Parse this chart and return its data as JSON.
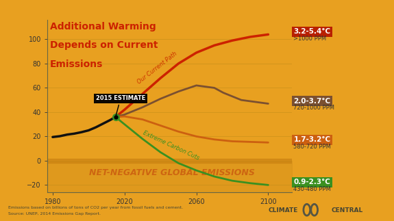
{
  "bg_color": "#E8A020",
  "title_line1": "Additional Warming",
  "title_line2": "Depends on Current",
  "title_line3": "Emissions",
  "title_color": "#CC2200",
  "xlim": [
    1977,
    2113
  ],
  "ylim": [
    -26,
    116
  ],
  "xticks": [
    1980,
    2020,
    2060,
    2100
  ],
  "yticks": [
    -20,
    0,
    20,
    40,
    60,
    80,
    100
  ],
  "historical_x": [
    1980,
    1984,
    1988,
    1992,
    1996,
    2000,
    2004,
    2008,
    2012,
    2015
  ],
  "historical_y": [
    19.5,
    20.2,
    21.5,
    22.3,
    23.5,
    25.0,
    27.5,
    30.5,
    33.5,
    36.0
  ],
  "current_path_x": [
    2015,
    2020,
    2030,
    2040,
    2050,
    2060,
    2070,
    2080,
    2090,
    2100
  ],
  "current_path_y": [
    36.0,
    42.0,
    55.0,
    68.0,
    80.0,
    89.0,
    95.0,
    99.0,
    102.0,
    104.0
  ],
  "scenario_b_x": [
    2015,
    2020,
    2030,
    2040,
    2050,
    2060,
    2070,
    2075,
    2085,
    2100
  ],
  "scenario_b_y": [
    36.0,
    38.0,
    44.0,
    51.0,
    57.0,
    62.0,
    60.0,
    56.0,
    50.0,
    47.0
  ],
  "scenario_c_x": [
    2015,
    2020,
    2030,
    2040,
    2050,
    2060,
    2070,
    2080,
    2090,
    2100
  ],
  "scenario_c_y": [
    36.0,
    36.5,
    34.0,
    29.0,
    24.0,
    20.0,
    17.5,
    16.0,
    15.5,
    15.0
  ],
  "scenario_d_x": [
    2015,
    2020,
    2030,
    2040,
    2050,
    2060,
    2070,
    2080,
    2090,
    2100
  ],
  "scenario_d_y": [
    36.0,
    30.0,
    18.0,
    7.0,
    -2.0,
    -8.0,
    -13.0,
    -16.5,
    -18.5,
    -20.0
  ],
  "historical_color": "#111111",
  "current_path_color": "#CC2200",
  "scenario_b_color": "#7B5030",
  "scenario_c_color": "#CC6010",
  "scenario_d_color": "#3A9020",
  "label_red_text": "3.2-5.4°C",
  "label_red_sub": ">1000 PPM",
  "label_red_bg": "#B82000",
  "label_brown_text": "2.0-3.7°C",
  "label_brown_sub": "720-1000 PPM",
  "label_brown_bg": "#7B5030",
  "label_orange_text": "1.7-3.2°C",
  "label_orange_sub": "580-720 PPM",
  "label_orange_bg": "#CC6010",
  "label_green_text": "0.9-2.3°C",
  "label_green_sub": "430-480 PPM",
  "label_green_bg": "#3A9020",
  "net_neg_text": "NET-NEGATIVE GLOBAL EMISSIONS",
  "net_neg_color": "#CC6010",
  "anno_2015_text": "2015 ESTIMATE",
  "current_path_label": "Our Current Path",
  "extreme_cuts_label": "Extreme Carbon Cuts",
  "footnote1": "Emissions based on billions of tons of CO2 per year from fossil fuels and cement.",
  "footnote2": "Source: UNEP, 2014 Emissions Gap Report.",
  "lw_main": 2.5,
  "lw_scenario": 2.0
}
